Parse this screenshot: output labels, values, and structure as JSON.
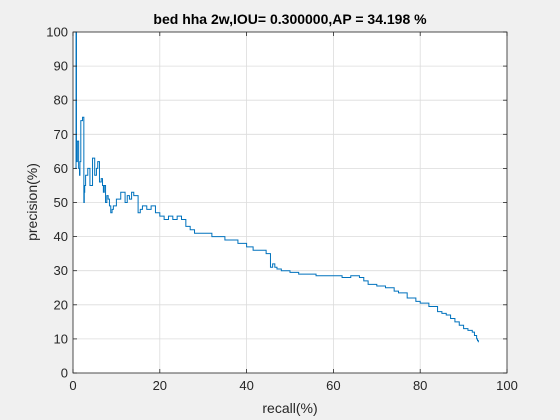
{
  "chart_data": {
    "type": "line",
    "title": "bed hha 2w,IOU= 0.300000,AP = 34.198 %",
    "xlabel": "recall(%)",
    "ylabel": "precision(%)",
    "xlim": [
      0,
      100
    ],
    "ylim": [
      0,
      100
    ],
    "xticks": [
      "0",
      "20",
      "40",
      "60",
      "80",
      "100"
    ],
    "yticks": [
      "0",
      "10",
      "20",
      "30",
      "40",
      "50",
      "60",
      "70",
      "80",
      "90",
      "100"
    ],
    "grid": true,
    "line_color": "#0072bd",
    "x": [
      0.4,
      0.7,
      0.8,
      1.0,
      1.3,
      1.5,
      1.6,
      1.8,
      2.2,
      2.5,
      2.6,
      2.7,
      2.9,
      3.4,
      3.9,
      4.5,
      5.0,
      5.4,
      5.7,
      6.1,
      6.5,
      6.8,
      7.0,
      7.2,
      7.5,
      7.8,
      8.1,
      8.4,
      8.7,
      9.0,
      9.3,
      10.0,
      11.0,
      12.0,
      12.5,
      13.0,
      13.5,
      14.0,
      15.0,
      15.5,
      16.0,
      17.0,
      18.0,
      19.0,
      20.0,
      21.0,
      22.0,
      23.0,
      24.0,
      25.0,
      26.0,
      27.0,
      28.0,
      30.0,
      32.0,
      34.0,
      35.0,
      36.0,
      38.0,
      40.0,
      41.5,
      43.0,
      44.5,
      45.5,
      46.0,
      46.5,
      47.0,
      48.0,
      50.0,
      52.0,
      54.0,
      56.0,
      58.0,
      60.0,
      62.0,
      64.0,
      66.0,
      67.0,
      68.0,
      70.0,
      72.0,
      74.0,
      75.0,
      77.0,
      79.0,
      80.0,
      82.0,
      84.0,
      85.0,
      86.0,
      87.0,
      88.0,
      89.0,
      90.0,
      91.0,
      92.0,
      92.5,
      93.0,
      93.2,
      93.4
    ],
    "y": [
      60,
      100,
      62,
      68,
      60,
      58,
      62,
      74,
      75,
      50,
      53,
      55,
      58,
      60,
      55,
      63,
      58,
      60,
      62,
      56,
      57,
      55,
      53,
      55,
      50,
      52,
      51,
      49,
      47,
      48,
      49,
      51,
      53,
      50,
      52,
      51,
      53,
      52,
      47,
      48,
      49,
      48,
      49,
      47,
      46,
      45,
      46,
      45,
      46,
      45,
      43,
      42,
      41,
      41,
      40,
      40,
      39,
      39,
      38,
      37,
      36,
      36,
      35,
      31,
      32,
      31,
      30.5,
      30,
      29.5,
      29,
      29,
      28.5,
      28.5,
      28.5,
      28,
      28.5,
      28,
      27,
      26,
      25.5,
      25,
      24,
      23.5,
      22,
      21,
      20.5,
      19.5,
      18,
      17.5,
      17,
      16,
      15,
      14,
      13,
      12.5,
      12,
      11,
      10,
      9.5,
      9
    ]
  }
}
